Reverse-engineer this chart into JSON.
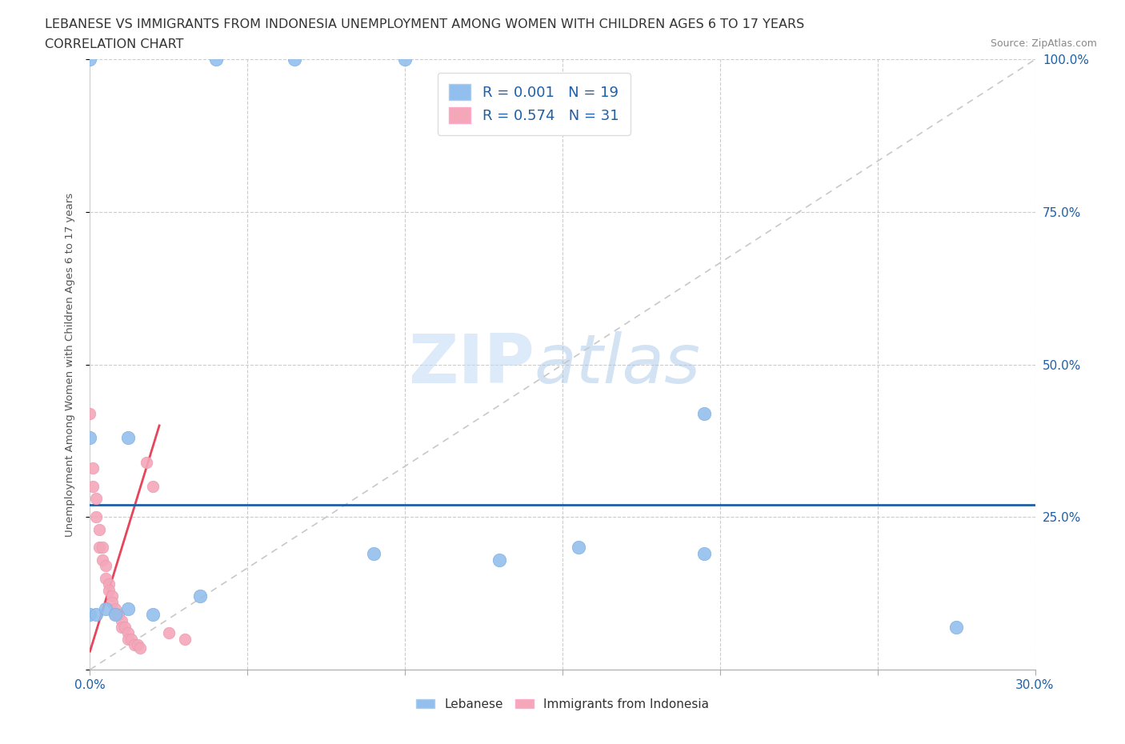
{
  "title_line1": "LEBANESE VS IMMIGRANTS FROM INDONESIA UNEMPLOYMENT AMONG WOMEN WITH CHILDREN AGES 6 TO 17 YEARS",
  "title_line2": "CORRELATION CHART",
  "source_text": "Source: ZipAtlas.com",
  "ylabel": "Unemployment Among Women with Children Ages 6 to 17 years",
  "xlim": [
    0.0,
    0.3
  ],
  "ylim": [
    0.0,
    1.0
  ],
  "xtick_positions": [
    0.0,
    0.05,
    0.1,
    0.15,
    0.2,
    0.25,
    0.3
  ],
  "xticklabels": [
    "0.0%",
    "",
    "",
    "",
    "",
    "",
    "30.0%"
  ],
  "ytick_positions": [
    0.0,
    0.25,
    0.5,
    0.75,
    1.0
  ],
  "yticklabels_right": [
    "",
    "25.0%",
    "50.0%",
    "75.0%",
    "100.0%"
  ],
  "blue_scatter": [
    [
      0.0,
      1.0
    ],
    [
      0.04,
      1.0
    ],
    [
      0.065,
      1.0
    ],
    [
      0.1,
      1.0
    ],
    [
      0.0,
      0.38
    ],
    [
      0.012,
      0.38
    ],
    [
      0.0,
      0.09
    ],
    [
      0.002,
      0.09
    ],
    [
      0.005,
      0.1
    ],
    [
      0.008,
      0.09
    ],
    [
      0.012,
      0.1
    ],
    [
      0.02,
      0.09
    ],
    [
      0.035,
      0.12
    ],
    [
      0.09,
      0.19
    ],
    [
      0.13,
      0.18
    ],
    [
      0.195,
      0.19
    ],
    [
      0.195,
      0.42
    ],
    [
      0.275,
      0.07
    ],
    [
      0.155,
      0.2
    ]
  ],
  "pink_scatter": [
    [
      0.0,
      0.42
    ],
    [
      0.001,
      0.33
    ],
    [
      0.001,
      0.3
    ],
    [
      0.002,
      0.28
    ],
    [
      0.002,
      0.25
    ],
    [
      0.003,
      0.23
    ],
    [
      0.003,
      0.2
    ],
    [
      0.004,
      0.2
    ],
    [
      0.004,
      0.18
    ],
    [
      0.005,
      0.17
    ],
    [
      0.005,
      0.15
    ],
    [
      0.006,
      0.14
    ],
    [
      0.006,
      0.13
    ],
    [
      0.007,
      0.12
    ],
    [
      0.007,
      0.11
    ],
    [
      0.008,
      0.1
    ],
    [
      0.008,
      0.09
    ],
    [
      0.009,
      0.09
    ],
    [
      0.01,
      0.08
    ],
    [
      0.01,
      0.07
    ],
    [
      0.011,
      0.07
    ],
    [
      0.012,
      0.06
    ],
    [
      0.012,
      0.05
    ],
    [
      0.013,
      0.05
    ],
    [
      0.014,
      0.04
    ],
    [
      0.015,
      0.04
    ],
    [
      0.016,
      0.035
    ],
    [
      0.018,
      0.34
    ],
    [
      0.02,
      0.3
    ],
    [
      0.025,
      0.06
    ],
    [
      0.03,
      0.05
    ]
  ],
  "blue_line_y": 0.27,
  "blue_color": "#92BFED",
  "pink_color": "#F4A7B9",
  "blue_line_color": "#1E5FA8",
  "pink_line_color": "#E8445A",
  "gray_diag_color": "#C8C8C8",
  "legend_R_blue": "R = 0.001",
  "legend_N_blue": "N = 19",
  "legend_R_pink": "R = 0.574",
  "legend_N_pink": "N = 31",
  "legend_label_blue": "Lebanese",
  "legend_label_pink": "Immigrants from Indonesia",
  "watermark_zip": "ZIP",
  "watermark_atlas": "atlas",
  "background_color": "#FFFFFF",
  "grid_color": "#CCCCCC",
  "title_color": "#333333",
  "label_color": "#555555",
  "tick_color": "#1E5FA8"
}
